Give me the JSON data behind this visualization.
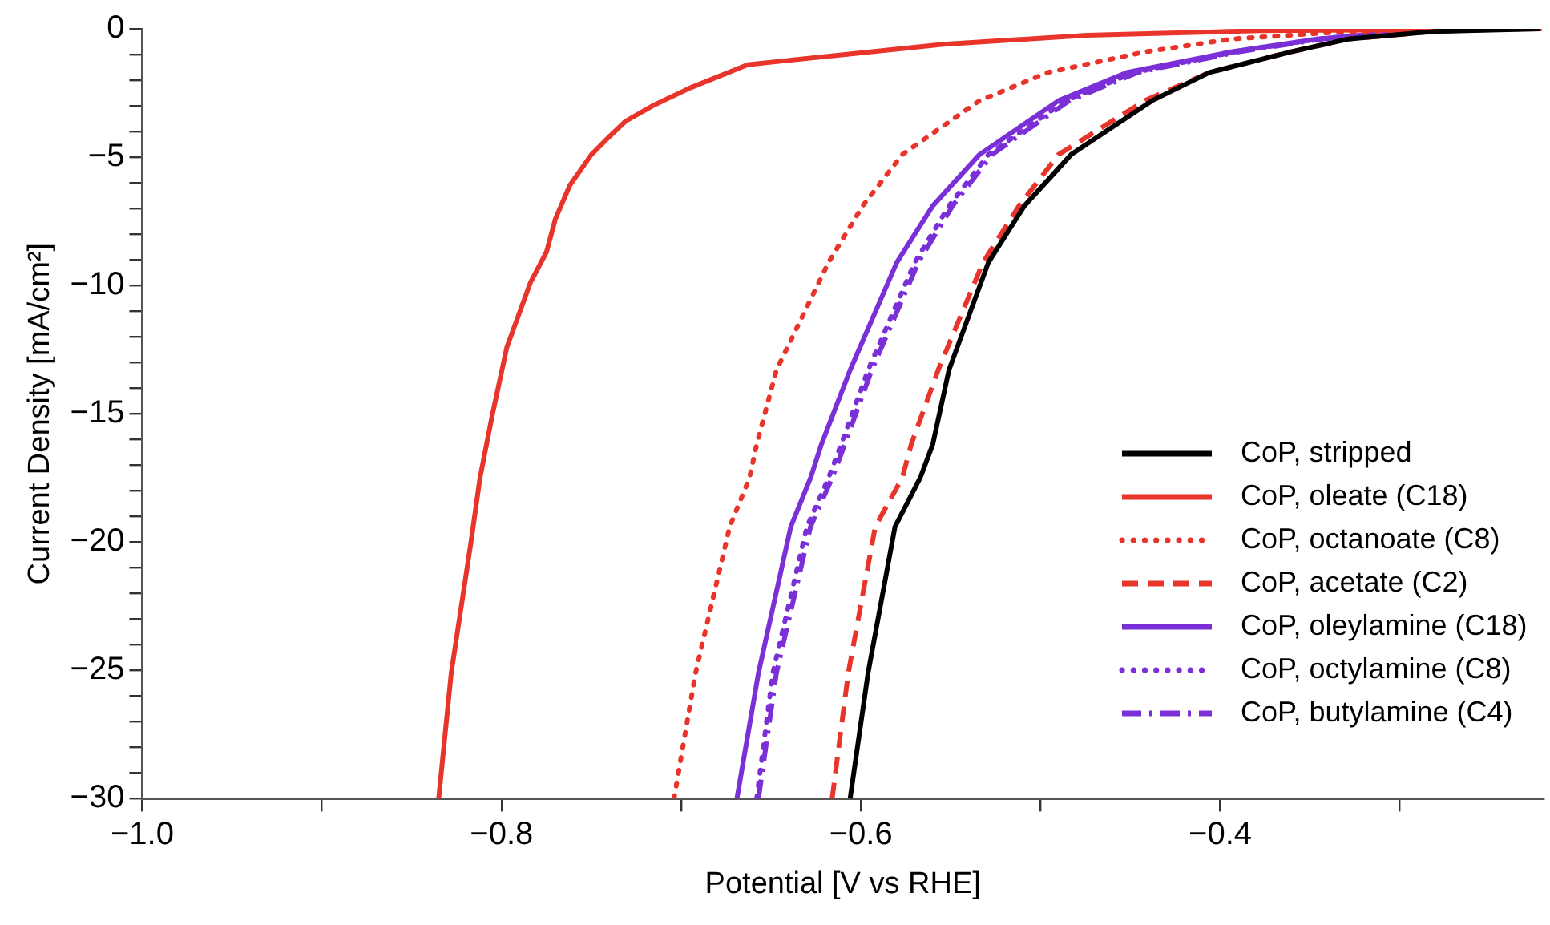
{
  "chart_data": {
    "type": "line",
    "xlabel": "Potential [V vs RHE]",
    "ylabel": "Current Density [mA/cm²]",
    "xlim": [
      -1.0,
      -0.22
    ],
    "xticks": [
      {
        "value": -1.0,
        "label": "−1.0"
      },
      {
        "value": -0.9,
        "label": null
      },
      {
        "value": -0.8,
        "label": "−0.8"
      },
      {
        "value": -0.7,
        "label": null
      },
      {
        "value": -0.6,
        "label": "−0.6"
      },
      {
        "value": -0.5,
        "label": null
      },
      {
        "value": -0.4,
        "label": "−0.4"
      },
      {
        "value": -0.3,
        "label": null
      }
    ],
    "ylim": [
      -30,
      0
    ],
    "yticks": [
      {
        "value": -30,
        "label": "−30"
      },
      {
        "value": -29,
        "label": null
      },
      {
        "value": -28,
        "label": null
      },
      {
        "value": -27,
        "label": null
      },
      {
        "value": -26,
        "label": null
      },
      {
        "value": -25,
        "label": "−25"
      },
      {
        "value": -24,
        "label": null
      },
      {
        "value": -23,
        "label": null
      },
      {
        "value": -22,
        "label": null
      },
      {
        "value": -21,
        "label": null
      },
      {
        "value": -20,
        "label": "−20"
      },
      {
        "value": -19,
        "label": null
      },
      {
        "value": -18,
        "label": null
      },
      {
        "value": -17,
        "label": null
      },
      {
        "value": -16,
        "label": null
      },
      {
        "value": -15,
        "label": "−15"
      },
      {
        "value": -14,
        "label": null
      },
      {
        "value": -13,
        "label": null
      },
      {
        "value": -12,
        "label": null
      },
      {
        "value": -11,
        "label": null
      },
      {
        "value": -10,
        "label": "−10"
      },
      {
        "value": -9,
        "label": null
      },
      {
        "value": -8,
        "label": null
      },
      {
        "value": -7,
        "label": null
      },
      {
        "value": -6,
        "label": null
      },
      {
        "value": -5,
        "label": "−5"
      },
      {
        "value": -4,
        "label": null
      },
      {
        "value": -3,
        "label": null
      },
      {
        "value": -2,
        "label": null
      },
      {
        "value": -1,
        "label": null
      },
      0
    ],
    "grid": false,
    "legend": "bottom right",
    "marker": "none",
    "series": [
      {
        "name": "CoP, stripped",
        "color": "#000000",
        "line_style": "solid",
        "x": [
          -0.606,
          -0.596,
          -0.581,
          -0.567,
          -0.56,
          -0.551,
          -0.529,
          -0.509,
          -0.483,
          -0.438,
          -0.406,
          -0.361,
          -0.329,
          -0.281,
          -0.222
        ],
        "values": [
          -30,
          -25.1,
          -19.4,
          -17.5,
          -16.2,
          -13.3,
          -9.1,
          -6.9,
          -4.9,
          -2.8,
          -1.7,
          -0.9,
          -0.4,
          -0.1,
          0
        ]
      },
      {
        "name": "CoP, oleate (C18)",
        "color": "#e8342a",
        "line_style": "solid",
        "x": [
          -0.835,
          -0.828,
          -0.817,
          -0.812,
          -0.805,
          -0.797,
          -0.784,
          -0.775,
          -0.77,
          -0.762,
          -0.75,
          -0.74,
          -0.731,
          -0.716,
          -0.695,
          -0.663,
          -0.65,
          -0.554,
          -0.474,
          -0.378,
          -0.221
        ],
        "values": [
          -30,
          -25.1,
          -20,
          -17.5,
          -15,
          -12.4,
          -9.9,
          -8.7,
          -7.4,
          -6.1,
          -4.9,
          -4.2,
          -3.6,
          -3.0,
          -2.3,
          -1.4,
          -1.3,
          -0.6,
          -0.25,
          -0.07,
          0
        ]
      },
      {
        "name": "CoP, octanoate (C8)",
        "color": "#e8342a",
        "line_style": "dotted",
        "x": [
          -0.704,
          -0.692,
          -0.673,
          -0.662,
          -0.658,
          -0.647,
          -0.618,
          -0.599,
          -0.577,
          -0.534,
          -0.496,
          -0.442,
          -0.394,
          -0.329,
          -0.23
        ],
        "values": [
          -30,
          -25.1,
          -19.4,
          -17.5,
          -16.2,
          -13.3,
          -9.1,
          -6.9,
          -4.9,
          -2.8,
          -1.7,
          -0.9,
          -0.4,
          -0.1,
          0
        ]
      },
      {
        "name": "CoP, acetate (C2)",
        "color": "#e8342a",
        "line_style": "dashed",
        "x": [
          -0.616,
          -0.607,
          -0.592,
          -0.577,
          -0.572,
          -0.557,
          -0.532,
          -0.512,
          -0.49,
          -0.442,
          -0.406,
          -0.361,
          -0.329,
          -0.281,
          -0.24
        ],
        "values": [
          -30,
          -25.1,
          -19.4,
          -17.5,
          -16.2,
          -13.3,
          -9.1,
          -6.9,
          -4.9,
          -2.8,
          -1.7,
          -0.9,
          -0.4,
          -0.1,
          0
        ]
      },
      {
        "name": "CoP, oleylamine (C18)",
        "color": "#7b2fd6",
        "line_style": "solid",
        "x": [
          -0.669,
          -0.657,
          -0.639,
          -0.628,
          -0.622,
          -0.606,
          -0.58,
          -0.56,
          -0.534,
          -0.49,
          -0.452,
          -0.394,
          -0.346,
          -0.298,
          -0.25
        ],
        "values": [
          -30,
          -25.1,
          -19.4,
          -17.5,
          -16.2,
          -13.3,
          -9.1,
          -6.9,
          -4.9,
          -2.8,
          -1.7,
          -0.9,
          -0.4,
          -0.1,
          0
        ]
      },
      {
        "name": "CoP, octylamine (C8)",
        "color": "#7b2fd6",
        "line_style": "dotted",
        "x": [
          -0.658,
          -0.649,
          -0.63,
          -0.618,
          -0.611,
          -0.596,
          -0.57,
          -0.551,
          -0.529,
          -0.486,
          -0.448,
          -0.392,
          -0.346,
          -0.298,
          -0.26
        ],
        "values": [
          -30,
          -25.1,
          -19.4,
          -17.5,
          -16.2,
          -13.3,
          -9.1,
          -6.9,
          -4.9,
          -2.8,
          -1.7,
          -0.9,
          -0.4,
          -0.1,
          0
        ]
      },
      {
        "name": "CoP, butylamine (C4)",
        "color": "#7b2fd6",
        "line_style": "dashdot",
        "x": [
          -0.657,
          -0.647,
          -0.628,
          -0.616,
          -0.609,
          -0.594,
          -0.568,
          -0.549,
          -0.527,
          -0.484,
          -0.446,
          -0.39,
          -0.344,
          -0.296,
          -0.235
        ],
        "values": [
          -30,
          -25.1,
          -19.4,
          -17.5,
          -16.2,
          -13.3,
          -9.1,
          -6.9,
          -4.9,
          -2.8,
          -1.7,
          -0.9,
          -0.4,
          -0.1,
          0
        ]
      }
    ]
  }
}
